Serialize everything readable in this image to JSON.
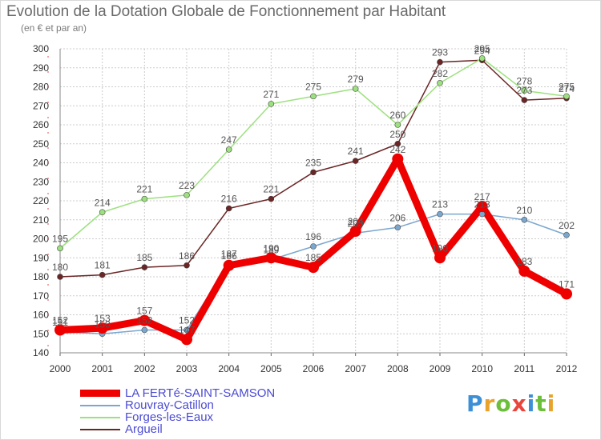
{
  "chart_data": {
    "type": "line",
    "title": "Evolution de la Dotation Globale de Fonctionnement par Habitant",
    "subtitle": "(en € et par an)",
    "xlabel": "",
    "ylabel": "",
    "categories": [
      "2000",
      "2001",
      "2002",
      "2003",
      "2004",
      "2005",
      "2006",
      "2007",
      "2008",
      "2009",
      "2010",
      "2011",
      "2012"
    ],
    "ylim": [
      140,
      300
    ],
    "yticks": [
      140,
      150,
      160,
      170,
      180,
      190,
      200,
      210,
      220,
      230,
      240,
      250,
      260,
      270,
      280,
      290,
      300
    ],
    "grid": true,
    "series": [
      {
        "name": "LA FERTé-SAINT-SAMSON",
        "color": "#ee0000",
        "values": [
          152,
          153,
          157,
          147,
          186,
          190,
          185,
          204,
          242,
          190,
          217,
          183,
          171
        ],
        "labels": [
          "152",
          "153",
          "157",
          "147",
          "186",
          "190",
          "185",
          "204",
          "242",
          "190",
          "217",
          "183",
          "171"
        ]
      },
      {
        "name": "Rouvray-Catillon",
        "color": "#7ba7cf",
        "values": [
          151,
          150,
          152,
          152,
          187,
          189,
          196,
          203,
          206,
          213,
          213,
          210,
          202
        ],
        "labels": [
          "151",
          "150",
          "152",
          "152",
          "187",
          "189",
          "196",
          "203",
          "206",
          "213",
          "213",
          "210",
          "202"
        ]
      },
      {
        "name": "Forges-les-Eaux",
        "color": "#9de07f",
        "values": [
          195,
          214,
          221,
          223,
          247,
          271,
          275,
          279,
          260,
          282,
          295,
          278,
          275
        ],
        "labels": [
          "195",
          "214",
          "221",
          "223",
          "247",
          "271",
          "275",
          "279",
          "260",
          "282",
          "295",
          "278",
          "275"
        ]
      },
      {
        "name": "Argueil",
        "color": "#6b2525",
        "values": [
          180,
          181,
          185,
          186,
          216,
          221,
          235,
          241,
          250,
          293,
          294,
          273,
          274
        ],
        "labels": [
          "180",
          "181",
          "185",
          "186",
          "216",
          "221",
          "235",
          "241",
          "250",
          "293",
          "294",
          "273",
          "274"
        ]
      }
    ]
  },
  "logo": {
    "letters": [
      "P",
      "r",
      "o",
      "x",
      "i",
      "t",
      "i"
    ],
    "colors": [
      "#3d8fd6",
      "#e8a32a",
      "#6cbf3a",
      "#e8453c",
      "#3d8fd6",
      "#6cbf3a",
      "#e8a32a"
    ]
  }
}
